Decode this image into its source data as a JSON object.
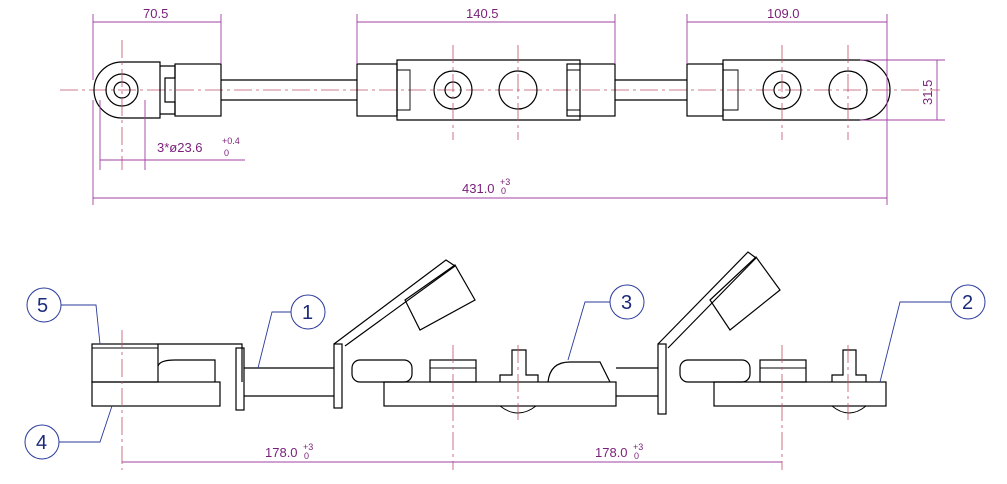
{
  "dimensions": {
    "d1": "70.5",
    "d2": "140.5",
    "d3": "109.0",
    "d4": "31.5",
    "hole_main": "3*ø23.6",
    "hole_tol_top": "+0.4",
    "hole_tol_bot": "0",
    "overall": "431.0",
    "overall_tol": "+3\n0",
    "lower1": "178.0",
    "lower2": "178.0"
  },
  "callouts": {
    "c1": "1",
    "c2": "2",
    "c3": "3",
    "c4": "4",
    "c5": "5"
  },
  "colors": {
    "dimension": "#7a1f7a",
    "centerline": "#c0506a",
    "callout": "#1c2a7a",
    "outline": "#000000"
  }
}
